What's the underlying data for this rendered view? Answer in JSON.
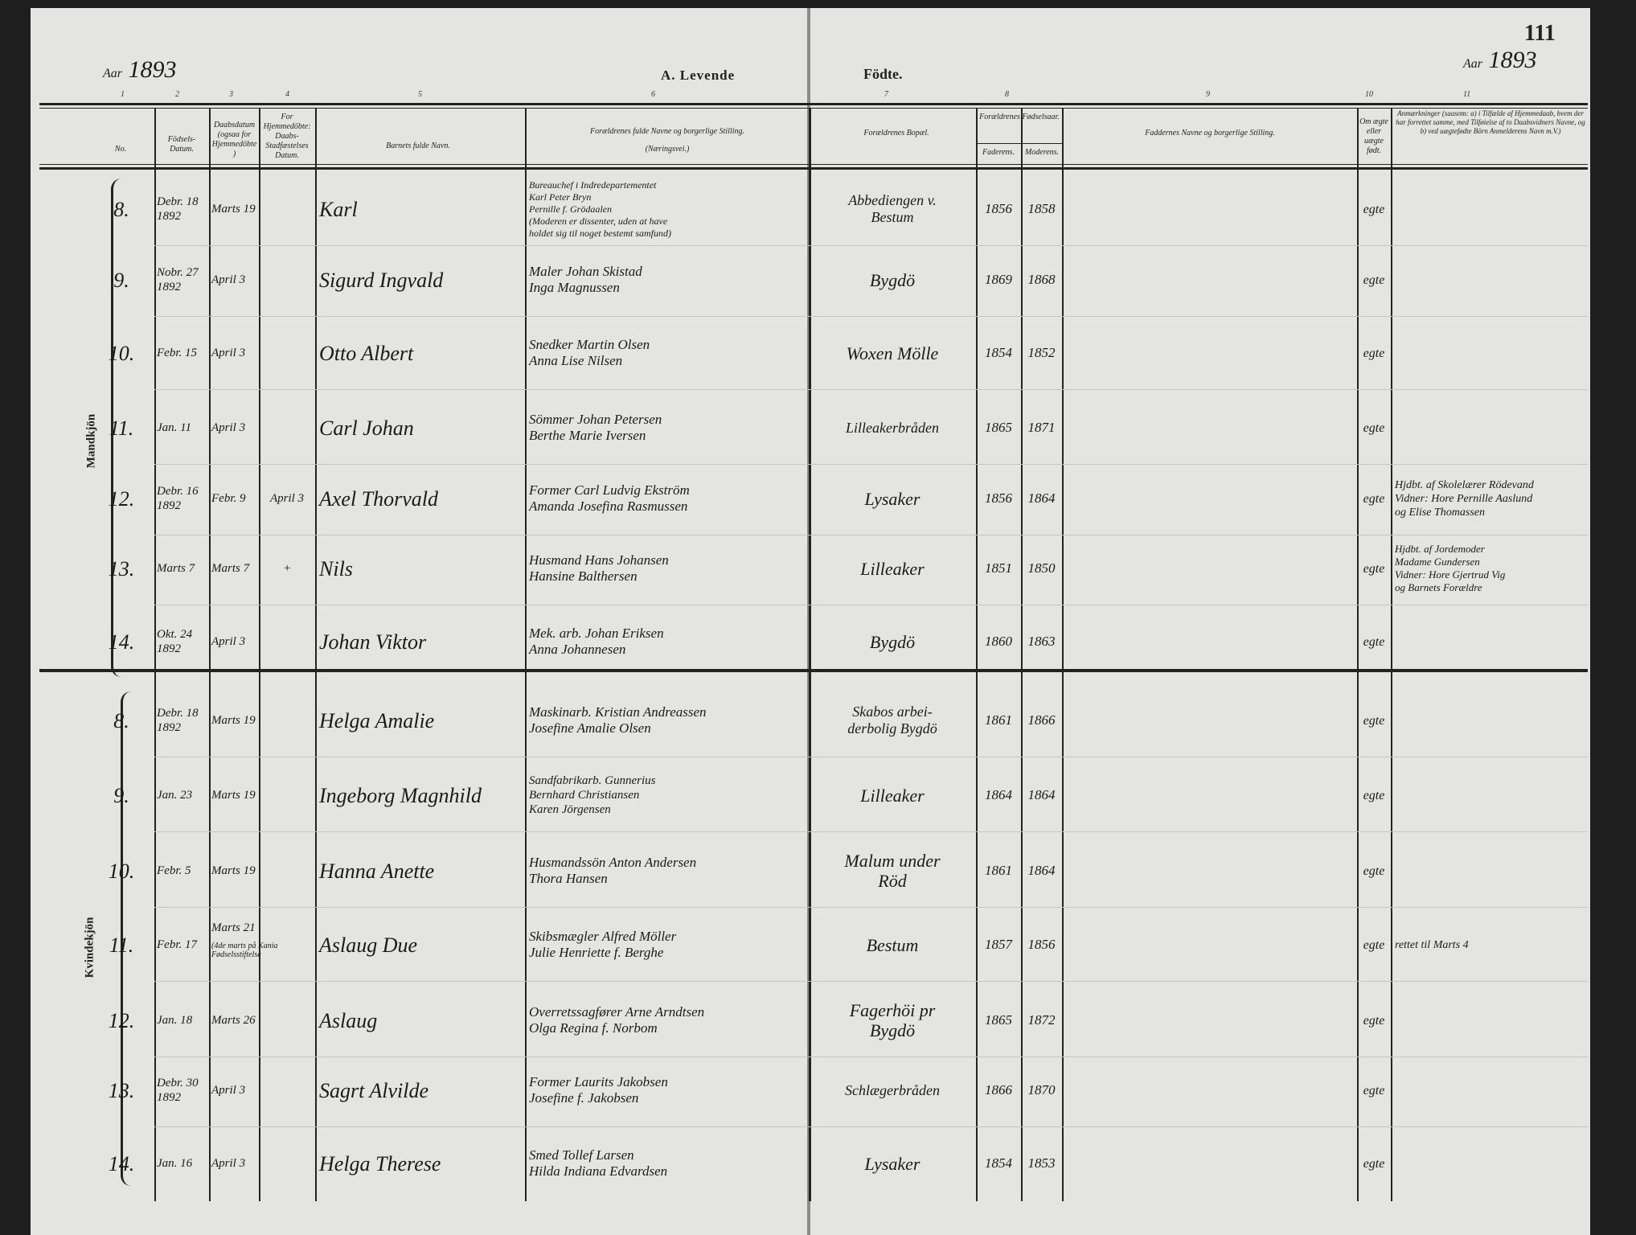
{
  "header": {
    "left_year_label": "Aar",
    "left_year": "1893",
    "title_left": "A. Levende",
    "title_right": "Födte.",
    "page_number": "111",
    "right_year_label": "Aar",
    "right_year": "1893",
    "column_numbers": [
      "1",
      "2",
      "3",
      "4",
      "5",
      "6",
      "7",
      "8",
      "9",
      "10",
      "11"
    ],
    "columns": {
      "no": "No.",
      "birth_date": "Födsels-Datum.",
      "baptism_date": "Daabsdatum (ogsaa for Hjemmedöbte)",
      "home_baptized": "For Hjemmedöbte: Daabs-Stadfæstelses Datum.",
      "child_name": "Barnets fulde Navn.",
      "parents": "Forældrenes fulde Navne og borgerlige Stilling.",
      "parents_sub": "(Næringsvei.)",
      "residence": "Forældrenes Bopæl.",
      "birth_years": "Forældrenes Fødselsaar.",
      "father": "Faderens.",
      "mother": "Moderens.",
      "sponsors": "Faddernes Navne og borgerlige Stilling.",
      "legitimacy": "Om ægte eller uægte født.",
      "remarks": "Anmærkninger (saasom: a) i Tilfælde af Hjemmedaab, hvem der har forrettet samme, med Tilføielse af to Daabsvidners Navne, og b) ved uægtefødte Börn Anmelderens Navn m.V.)"
    }
  },
  "sections": [
    {
      "label": "Mandkjön",
      "rows": [
        {
          "no": "8.",
          "birth": "Debr. 18",
          "birth_year": "1892",
          "baptism": "Marts 19",
          "home": "",
          "name": "Karl",
          "parents": [
            "Bureauchef i Indredepartementet",
            "Karl Peter Bryn",
            "Pernille f. Grödaalen",
            "(Moderen er dissenter, uden at have",
            "holdet sig til noget bestemt samfund)"
          ],
          "residence": [
            "Abbediengen v.",
            "Bestum"
          ],
          "father_year": "1856",
          "mother_year": "1858",
          "legit": "egte",
          "remarks": []
        },
        {
          "no": "9.",
          "birth": "Nobr. 27",
          "birth_year": "1892",
          "baptism": "April 3",
          "home": "",
          "name": "Sigurd Ingvald",
          "parents": [
            "Maler Johan Skistad",
            "Inga Magnussen"
          ],
          "residence": [
            "Bygdö"
          ],
          "father_year": "1869",
          "mother_year": "1868",
          "legit": "egte",
          "remarks": []
        },
        {
          "no": "10.",
          "birth": "Febr. 15",
          "birth_year": "",
          "baptism": "April 3",
          "home": "",
          "name": "Otto Albert",
          "parents": [
            "Snedker Martin Olsen",
            "Anna Lise Nilsen"
          ],
          "residence": [
            "Woxen Mölle"
          ],
          "father_year": "1854",
          "mother_year": "1852",
          "legit": "egte",
          "remarks": []
        },
        {
          "no": "11.",
          "birth": "Jan. 11",
          "birth_year": "",
          "baptism": "April 3",
          "home": "",
          "name": "Carl Johan",
          "parents": [
            "Sömmer Johan Petersen",
            "Berthe Marie Iversen"
          ],
          "residence": [
            "Lilleakerbråden"
          ],
          "father_year": "1865",
          "mother_year": "1871",
          "legit": "egte",
          "remarks": []
        },
        {
          "no": "12.",
          "birth": "Debr. 16",
          "birth_year": "1892",
          "baptism": "Febr. 9",
          "home": "April 3",
          "name": "Axel Thorvald",
          "parents": [
            "Former Carl Ludvig Ekström",
            "Amanda Josefina Rasmussen"
          ],
          "residence": [
            "Lysaker"
          ],
          "father_year": "1856",
          "mother_year": "1864",
          "legit": "egte",
          "remarks": [
            "Hjdbt. af Skolelærer Rödevand",
            "Vidner: Hore Pernille Aaslund",
            "og Elise Thomassen"
          ]
        },
        {
          "no": "13.",
          "birth": "Marts 7",
          "birth_year": "",
          "baptism": "Marts 7",
          "home": "+",
          "name": "Nils",
          "parents": [
            "Husmand Hans Johansen",
            "Hansine Balthersen"
          ],
          "residence": [
            "Lilleaker"
          ],
          "father_year": "1851",
          "mother_year": "1850",
          "legit": "egte",
          "remarks": [
            "Hjdbt. af Jordemoder",
            "Madame Gundersen",
            "Vidner: Hore Gjertrud Vig",
            "og Barnets Forældre"
          ]
        },
        {
          "no": "14.",
          "birth": "Okt. 24",
          "birth_year": "1892",
          "baptism": "April 3",
          "home": "",
          "name": "Johan Viktor",
          "parents": [
            "Mek. arb. Johan Eriksen",
            "Anna Johannesen"
          ],
          "residence": [
            "Bygdö"
          ],
          "father_year": "1860",
          "mother_year": "1863",
          "legit": "egte",
          "remarks": []
        }
      ]
    },
    {
      "label": "Kvindekjön",
      "rows": [
        {
          "no": "8.",
          "birth": "Debr. 18",
          "birth_year": "1892",
          "baptism": "Marts 19",
          "home": "",
          "name": "Helga Amalie",
          "parents": [
            "Maskinarb. Kristian Andreassen",
            "Josefine Amalie Olsen"
          ],
          "residence": [
            "Skabos arbei-",
            "derbolig Bygdö"
          ],
          "father_year": "1861",
          "mother_year": "1866",
          "legit": "egte",
          "remarks": []
        },
        {
          "no": "9.",
          "birth": "Jan. 23",
          "birth_year": "",
          "baptism": "Marts 19",
          "home": "",
          "name": "Ingeborg Magnhild",
          "parents": [
            "Sandfabrikarb. Gunnerius",
            "Bernhard Christiansen",
            "Karen Jörgensen"
          ],
          "residence": [
            "Lilleaker"
          ],
          "father_year": "1864",
          "mother_year": "1864",
          "legit": "egte",
          "remarks": []
        },
        {
          "no": "10.",
          "birth": "Febr. 5",
          "birth_year": "",
          "baptism": "Marts 19",
          "home": "",
          "name": "Hanna Anette",
          "parents": [
            "Husmandssön Anton Andersen",
            "Thora Hansen"
          ],
          "residence": [
            "Malum under",
            "Röd"
          ],
          "father_year": "1861",
          "mother_year": "1864",
          "legit": "egte",
          "remarks": []
        },
        {
          "no": "11.",
          "birth": "Febr. 17",
          "birth_year": "",
          "baptism": "Marts 21",
          "baptism_note": "(4de marts på Kania Fødselsstiftelse",
          "home": "",
          "name": "Aslaug Due",
          "parents": [
            "Skibsmægler Alfred Möller",
            "Julie Henriette f. Berghe"
          ],
          "residence": [
            "Bestum"
          ],
          "father_year": "1857",
          "mother_year": "1856",
          "legit": "egte",
          "remarks": [
            "rettet til Marts 4"
          ]
        },
        {
          "no": "12.",
          "birth": "Jan. 18",
          "birth_year": "",
          "baptism": "Marts 26",
          "home": "",
          "name": "Aslaug",
          "parents": [
            "Overretssagfører Arne Arndtsen",
            "Olga Regina f. Norbom"
          ],
          "residence": [
            "Fagerhöi pr",
            "Bygdö"
          ],
          "father_year": "1865",
          "mother_year": "1872",
          "legit": "egte",
          "remarks": []
        },
        {
          "no": "13.",
          "birth": "Debr. 30",
          "birth_year": "1892",
          "baptism": "April 3",
          "home": "",
          "name": "Sagrt Alvilde",
          "parents": [
            "Former Laurits Jakobsen",
            "Josefine f. Jakobsen"
          ],
          "residence": [
            "Schlægerbråden"
          ],
          "father_year": "1866",
          "mother_year": "1870",
          "legit": "egte",
          "remarks": []
        },
        {
          "no": "14.",
          "birth": "Jan. 16",
          "birth_year": "",
          "baptism": "April 3",
          "home": "",
          "name": "Helga Therese",
          "parents": [
            "Smed Tollef Larsen",
            "Hilda Indiana Edvardsen"
          ],
          "residence": [
            "Lysaker"
          ],
          "father_year": "1854",
          "mother_year": "1853",
          "legit": "egte",
          "remarks": []
        }
      ]
    }
  ]
}
